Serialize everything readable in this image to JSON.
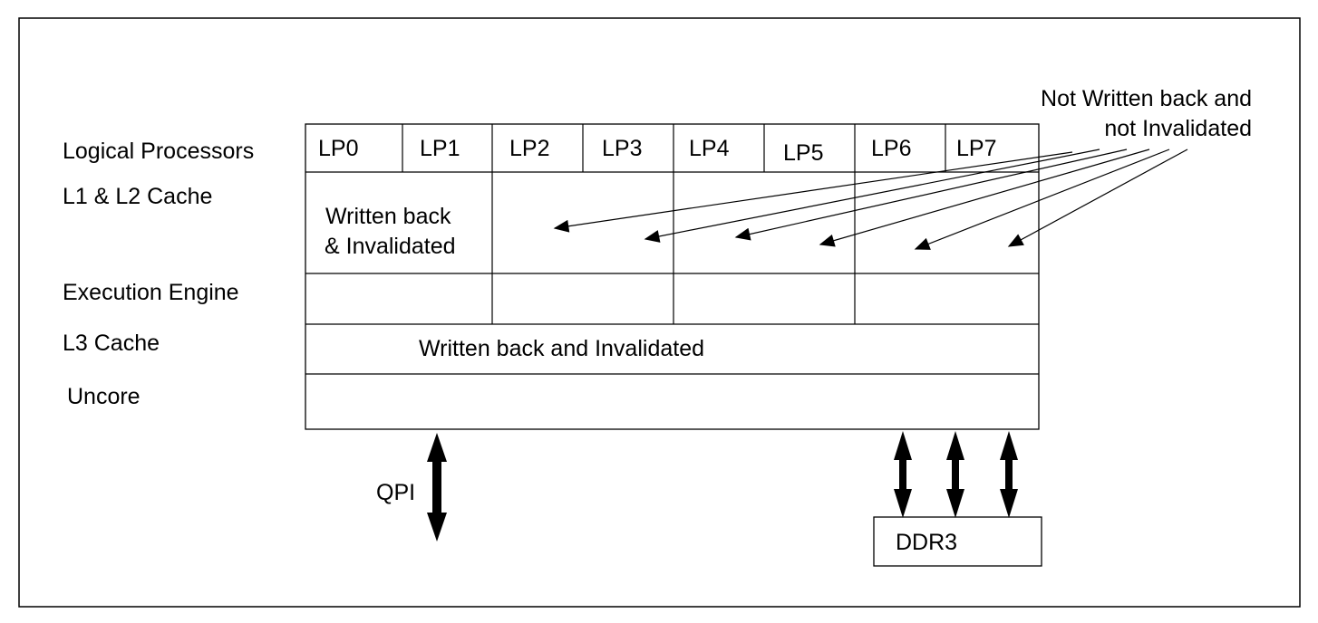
{
  "row_labels": {
    "logical_processors": "Logical Processors",
    "l1_l2_cache": "L1 & L2 Cache",
    "execution_engine": "Execution Engine",
    "l3_cache": "L3 Cache",
    "uncore": "Uncore"
  },
  "logical_processors": [
    "LP0",
    "LP1",
    "LP2",
    "LP3",
    "LP4",
    "LP5",
    "LP6",
    "LP7"
  ],
  "l1_l2": {
    "line1": "Written back",
    "line2": "& Invalidated"
  },
  "l3_text": "Written back and Invalidated",
  "annotation": {
    "line1": "Not Written back and",
    "line2": "not Invalidated"
  },
  "qpi_label": "QPI",
  "ddr3_label": "DDR3",
  "colors": {
    "stroke": "#000000",
    "background": "#ffffff"
  }
}
